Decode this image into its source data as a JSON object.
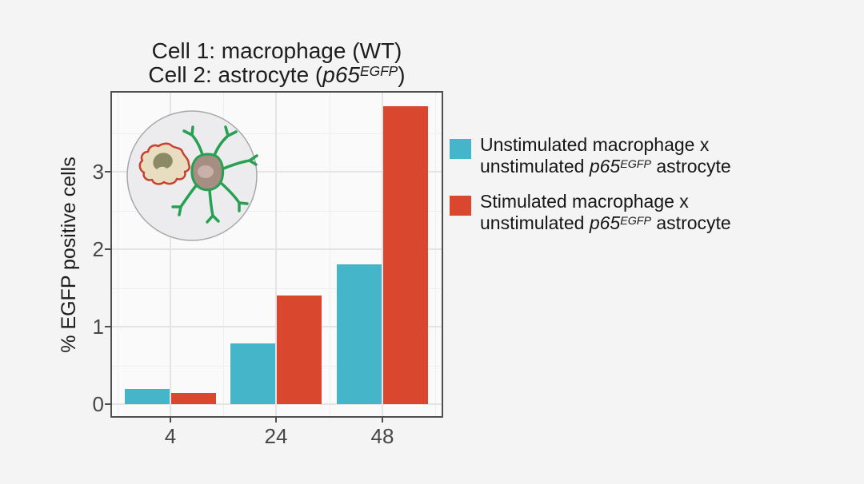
{
  "chart_data": {
    "type": "bar",
    "title": "Cell 1: macrophage (WT); Cell 2: astrocyte (p65 EGFP)",
    "categories": [
      "4",
      "24",
      "48"
    ],
    "series": [
      {
        "name": "Unstimulated macrophage x unstimulated p65 EGFP astrocyte",
        "color": "#45b6c9",
        "values": [
          0.2,
          0.78,
          1.8
        ]
      },
      {
        "name": "Stimulated macrophage x unstimulated p65 EGFP astrocyte",
        "color": "#d9482e",
        "values": [
          0.14,
          1.4,
          3.85
        ]
      }
    ],
    "xlabel": "",
    "ylabel": "% EGFP positive cells",
    "ylim": [
      0,
      4.05
    ],
    "yticks": [
      "0",
      "1",
      "2",
      "3"
    ],
    "grid": true,
    "legend_position": "right"
  },
  "title": {
    "line1": "Cell 1: macrophage (WT)",
    "line2_pre": "Cell 2: astrocyte (",
    "line2_gene": "p65",
    "line2_sup": "EGFP",
    "line2_post": ")"
  },
  "legend": {
    "items": [
      {
        "color": "#45b6c9",
        "line1": "Unstimulated macrophage x",
        "line2_pre": "unstimulated ",
        "gene": "p65",
        "sup": "EGFP",
        "line2_post": " astrocyte"
      },
      {
        "color": "#d9482e",
        "line1": "Stimulated macrophage x",
        "line2_pre": "unstimulated ",
        "gene": "p65",
        "sup": "EGFP",
        "line2_post": " astrocyte"
      }
    ]
  },
  "inset": {
    "icons": [
      "petri-dish-icon",
      "macrophage-icon",
      "astrocyte-icon"
    ],
    "petri_fill": "#ececee",
    "petri_stroke": "#a8a8aa",
    "macrophage_outline": "#c8402e",
    "macrophage_fill": "#e8ddc1",
    "macrophage_nucleus": "#8b8a64",
    "astrocyte_green": "#27a052",
    "astrocyte_soma": "#a68e83",
    "astrocyte_nucleus": "#c9b0a8"
  },
  "colors": {
    "background": "#f4f4f5",
    "panel_background": "#fafafa",
    "panel_border": "#4f4f4f",
    "grid_major": "#e4e4e6",
    "grid_minor": "#eeeeef",
    "tick_label": "#474747",
    "text": "#1d1d1d"
  }
}
